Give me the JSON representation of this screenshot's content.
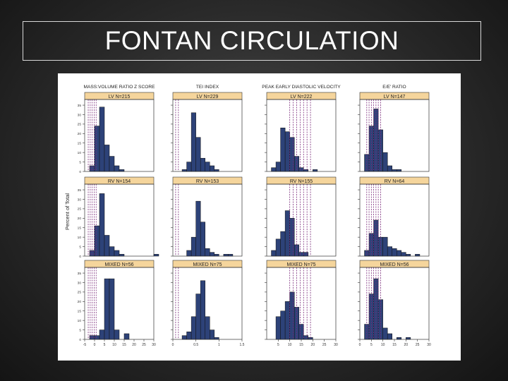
{
  "slide": {
    "title": "FONTAN CIRCULATION"
  },
  "chart_data": {
    "type": "bar",
    "ylabel": "Percent of Total",
    "yticks": [
      0,
      5,
      10,
      15,
      20,
      25,
      30,
      35
    ],
    "ylim": [
      0,
      38
    ],
    "bar_color": "#2d4278",
    "ref_line_color": "#7a2a7a",
    "strip_color": "#f5d59c",
    "columns": [
      {
        "title": "MASS:VOLUME RATIO Z SCORE",
        "xlim": [
          -5,
          30
        ],
        "xticks": [
          -5,
          0,
          5,
          10,
          15,
          20,
          25,
          30
        ],
        "ref_lines": [
          -3.2,
          -2.2,
          -1.2,
          -0.2,
          0.8
        ],
        "panels": [
          {
            "strip": "LV N=215",
            "bin_start": -2.5,
            "bin_width": 2.5,
            "values": [
              3,
              24,
              34,
              14,
              8,
              3,
              1,
              0,
              0,
              0,
              0,
              0,
              0,
              0
            ]
          },
          {
            "strip": "RV N=154",
            "bin_start": -2.5,
            "bin_width": 2.5,
            "values": [
              3,
              16,
              33,
              11,
              5,
              3,
              1,
              0,
              0,
              0,
              0,
              0,
              0,
              1
            ]
          },
          {
            "strip": "MIXED N=56",
            "bin_start": -2.5,
            "bin_width": 2.5,
            "values": [
              2,
              2,
              5,
              32,
              32,
              5,
              0,
              3,
              0,
              0,
              0,
              0,
              0
            ]
          }
        ]
      },
      {
        "title": "TEI INDEX",
        "xlim": [
          0.0,
          1.5
        ],
        "xticks": [
          0.0,
          0.5,
          1.0,
          1.5
        ],
        "ref_lines": [
          0.06,
          0.12
        ],
        "panels": [
          {
            "strip": "LV N=229",
            "bin_start": 0.2,
            "bin_width": 0.1,
            "values": [
              1,
              5,
              31,
              18,
              7,
              5,
              3,
              1,
              0
            ]
          },
          {
            "strip": "RV N=153",
            "bin_start": 0.3,
            "bin_width": 0.1,
            "values": [
              3,
              10,
              29,
              18,
              4,
              2,
              1,
              0,
              1,
              1
            ]
          },
          {
            "strip": "MIXED N=75",
            "bin_start": 0.2,
            "bin_width": 0.1,
            "values": [
              2,
              4,
              12,
              24,
              31,
              12,
              5,
              1
            ]
          }
        ]
      },
      {
        "title": "PEAK EARLY DIASTOLIC VELOCITY",
        "xlim": [
          0,
          30
        ],
        "xticks": [
          5,
          10,
          15,
          20,
          25,
          30
        ],
        "ref_lines": [
          10,
          11.5,
          13,
          14.5,
          16,
          17.5,
          19
        ],
        "panels": [
          {
            "strip": "LV N=222",
            "bin_start": 2,
            "bin_width": 2,
            "values": [
              2,
              5,
              23,
              21,
              18,
              8,
              2,
              1,
              0,
              1
            ]
          },
          {
            "strip": "RV N=155",
            "bin_start": 2,
            "bin_width": 2,
            "values": [
              3,
              9,
              13,
              24,
              20,
              6,
              2,
              2
            ]
          },
          {
            "strip": "MIXED N=75",
            "bin_start": 4,
            "bin_width": 2,
            "values": [
              12,
              15,
              20,
              25,
              17,
              8,
              2,
              1
            ]
          }
        ]
      },
      {
        "title": "E/E' RATIO",
        "xlim": [
          0,
          30
        ],
        "xticks": [
          0,
          5,
          10,
          15,
          20,
          25,
          30
        ],
        "ref_lines": [
          3,
          4,
          5,
          6,
          7,
          8,
          9
        ],
        "panels": [
          {
            "strip": "LV N=147",
            "bin_start": 2,
            "bin_width": 2,
            "values": [
              9,
              24,
              33,
              22,
              10,
              3,
              1,
              1
            ]
          },
          {
            "strip": "RV N=64",
            "bin_start": 2,
            "bin_width": 2,
            "values": [
              3,
              12,
              19,
              10,
              10,
              5,
              4,
              3,
              2,
              1,
              0,
              1
            ]
          },
          {
            "strip": "MIXED N=56",
            "bin_start": 2,
            "bin_width": 2,
            "values": [
              8,
              24,
              32,
              21,
              6,
              3,
              0,
              1,
              0,
              1
            ]
          }
        ]
      }
    ]
  }
}
